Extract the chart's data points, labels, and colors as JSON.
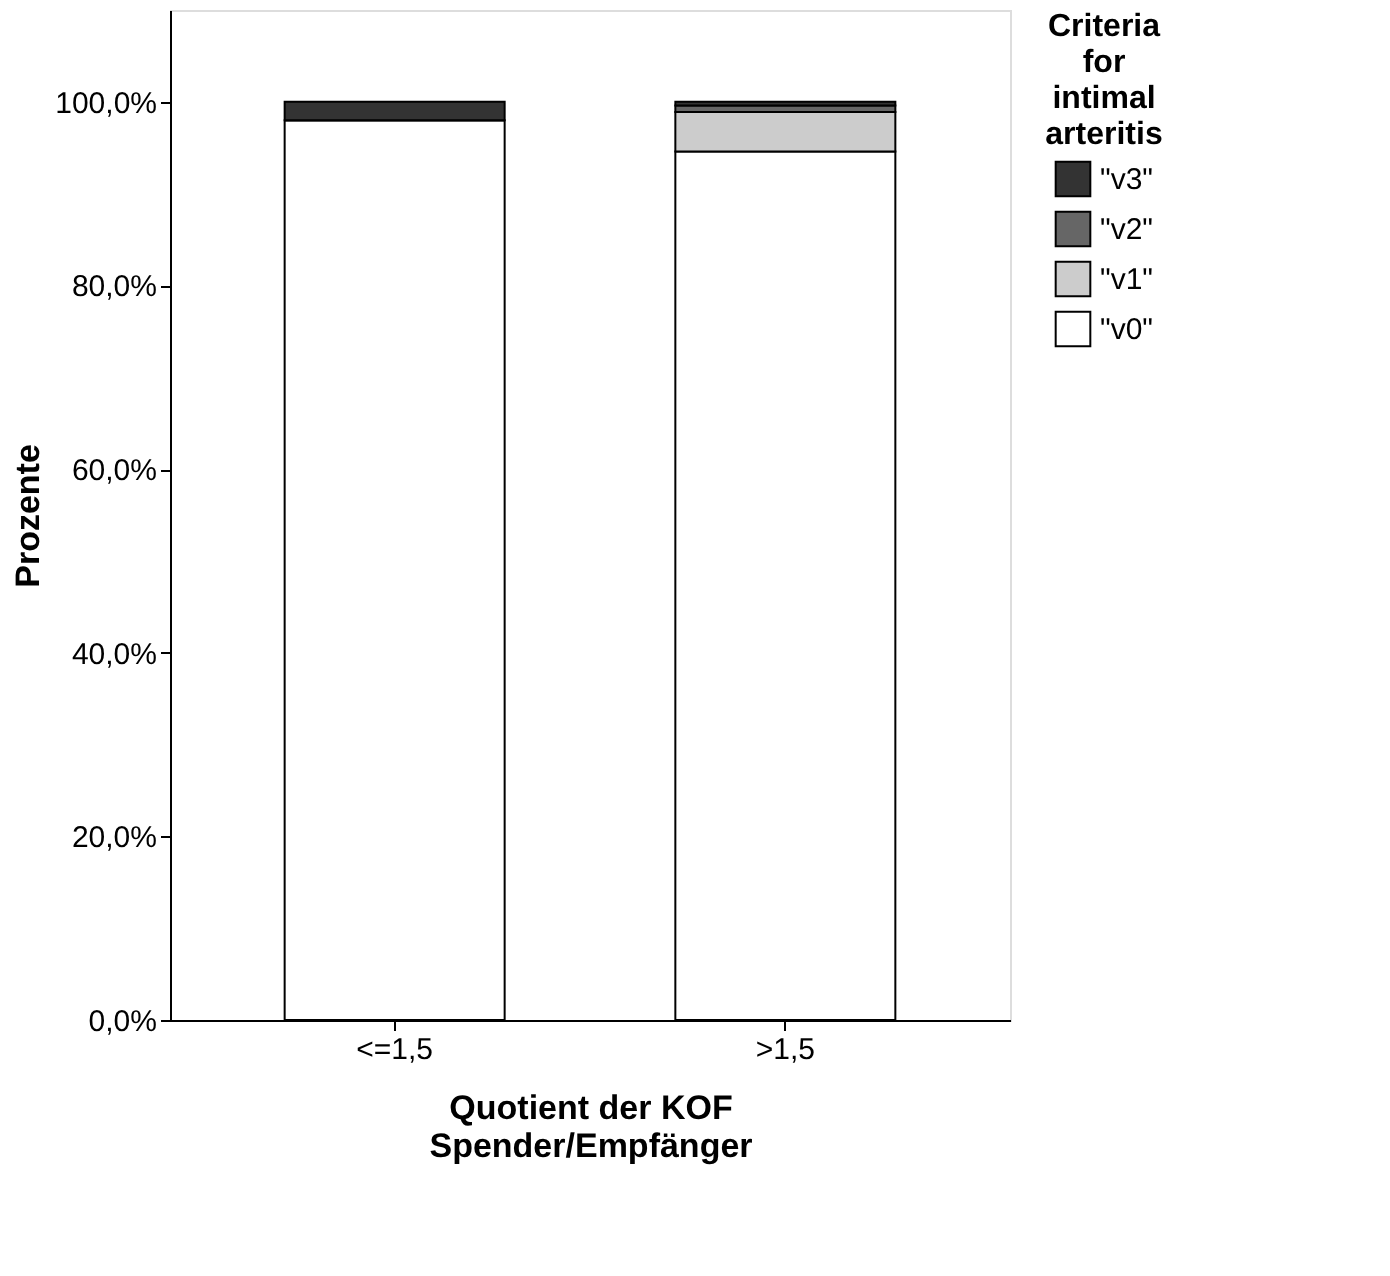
{
  "chart_data": {
    "type": "bar",
    "stacked": true,
    "ylabel": "Prozente",
    "xlabel": "Quotient der KOF\nSpender/Empfänger",
    "legend_title": "Criteria for intimal arteritis",
    "legend": "right",
    "grid": false,
    "categories": [
      "<=1,5",
      ">1,5"
    ],
    "series": [
      {
        "name": "\"v0\"",
        "color": "#ffffff",
        "values": [
          98.0,
          94.6
        ]
      },
      {
        "name": "\"v1\"",
        "color": "#cccccc",
        "values": [
          0,
          4.3
        ]
      },
      {
        "name": "\"v2\"",
        "color": "#666666",
        "values": [
          0,
          0.7
        ]
      },
      {
        "name": "\"v3\"",
        "color": "#333333",
        "values": [
          2.0,
          0.4
        ]
      }
    ],
    "ylim": [
      0,
      110
    ],
    "yticks": [
      {
        "value": 0,
        "label": "0,0%"
      },
      {
        "value": 20,
        "label": "20,0%"
      },
      {
        "value": 40,
        "label": "40,0%"
      },
      {
        "value": 60,
        "label": "60,0%"
      },
      {
        "value": 80,
        "label": "80,0%"
      },
      {
        "value": 100,
        "label": "100,0%"
      }
    ]
  }
}
